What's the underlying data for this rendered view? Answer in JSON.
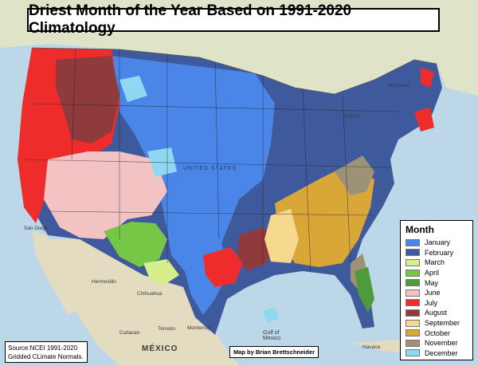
{
  "title": "Driest Month of the Year Based on 1991-2020 Climatology",
  "legend": {
    "title": "Month",
    "items": [
      {
        "label": "January",
        "color": "#4a86e8"
      },
      {
        "label": "February",
        "color": "#3f5a9c"
      },
      {
        "label": "March",
        "color": "#d6ef8c"
      },
      {
        "label": "April",
        "color": "#76c745"
      },
      {
        "label": "May",
        "color": "#4f9a3d"
      },
      {
        "label": "June",
        "color": "#f3c3c3"
      },
      {
        "label": "July",
        "color": "#ee2c2c"
      },
      {
        "label": "August",
        "color": "#8f3b3b"
      },
      {
        "label": "September",
        "color": "#f6d98d"
      },
      {
        "label": "October",
        "color": "#d9a638"
      },
      {
        "label": "November",
        "color": "#9c9278"
      },
      {
        "label": "December",
        "color": "#8fd8f2"
      }
    ]
  },
  "source": {
    "line1": "Source:NCEI 1991-2020",
    "line2": "Gridded CLimate Normals."
  },
  "credit": "Map by Brian Brettschneider",
  "basemap_labels": {
    "country_mexico": "MÉXICO",
    "gulf": "Gulf of",
    "gulf2": "Mexico",
    "san_diego": "San Diego",
    "monterrey": "Monterrey",
    "torreon": "Torreón",
    "chihuahua": "Chihuahua",
    "hermosillo": "Hermosillo",
    "culiacan": "Culiacan",
    "havana": "Havana",
    "toronto": "Toronto",
    "montreal": "Montreal",
    "united_states": "UNITED STATES"
  }
}
